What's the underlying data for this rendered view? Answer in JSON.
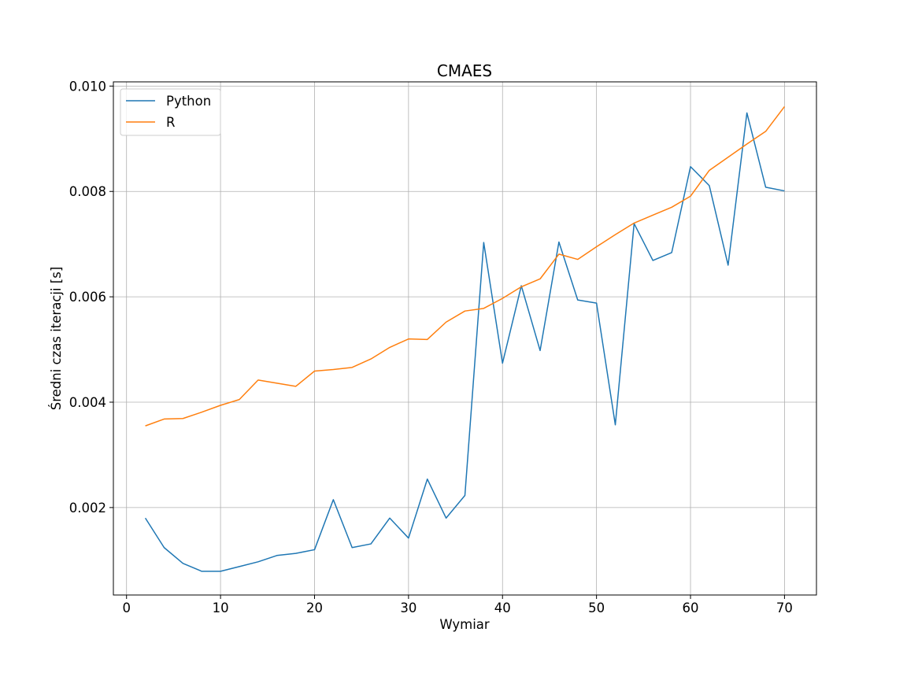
{
  "chart_data": {
    "type": "line",
    "title": "CMAES",
    "xlabel": "Wymiar",
    "ylabel": "Średni czas iteracji [s]",
    "xlim": [
      -1.4,
      73.4
    ],
    "ylim": [
      0.00034,
      0.01008
    ],
    "xticks": [
      0,
      10,
      20,
      30,
      40,
      50,
      60,
      70
    ],
    "xtick_labels": [
      "0",
      "10",
      "20",
      "30",
      "40",
      "50",
      "60",
      "70"
    ],
    "yticks": [
      0.002,
      0.004,
      0.006,
      0.008,
      0.01
    ],
    "ytick_labels": [
      "0.002",
      "0.004",
      "0.006",
      "0.008",
      "0.010"
    ],
    "grid": true,
    "legend_position": "top-left",
    "x": [
      2,
      4,
      6,
      8,
      10,
      12,
      14,
      16,
      18,
      20,
      22,
      24,
      26,
      28,
      30,
      32,
      34,
      36,
      38,
      40,
      42,
      44,
      46,
      48,
      50,
      52,
      54,
      56,
      58,
      60,
      62,
      64,
      66,
      68,
      70
    ],
    "series": [
      {
        "name": "Python",
        "color": "#1f77b4",
        "values": [
          0.0018,
          0.00124,
          0.00094,
          0.00079,
          0.00079,
          0.00088,
          0.00097,
          0.00109,
          0.00113,
          0.0012,
          0.00215,
          0.00124,
          0.00131,
          0.0018,
          0.00142,
          0.00254,
          0.0018,
          0.00223,
          0.00703,
          0.00474,
          0.00621,
          0.00498,
          0.00704,
          0.00594,
          0.00588,
          0.00357,
          0.00739,
          0.00669,
          0.00684,
          0.00847,
          0.00811,
          0.0066,
          0.00949,
          0.00808,
          0.00801
        ]
      },
      {
        "name": "R",
        "color": "#ff7f0e",
        "values": [
          0.00355,
          0.00368,
          0.00369,
          0.00381,
          0.00394,
          0.00405,
          0.00442,
          0.00436,
          0.0043,
          0.00459,
          0.00462,
          0.00466,
          0.00482,
          0.00504,
          0.0052,
          0.00519,
          0.00552,
          0.00573,
          0.00578,
          0.00597,
          0.00619,
          0.00634,
          0.00681,
          0.00671,
          0.00695,
          0.00718,
          0.0074,
          0.00755,
          0.0077,
          0.00791,
          0.0084,
          0.00865,
          0.0089,
          0.00914,
          0.00961
        ]
      }
    ]
  }
}
